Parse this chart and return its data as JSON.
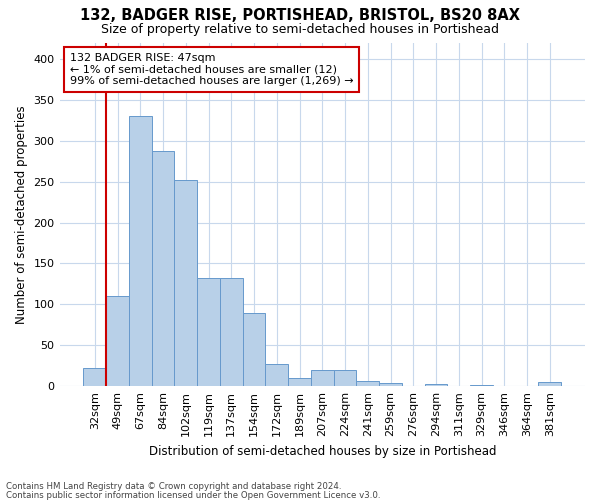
{
  "title1": "132, BADGER RISE, PORTISHEAD, BRISTOL, BS20 8AX",
  "title2": "Size of property relative to semi-detached houses in Portishead",
  "xlabel": "Distribution of semi-detached houses by size in Portishead",
  "ylabel": "Number of semi-detached properties",
  "categories": [
    "32sqm",
    "49sqm",
    "67sqm",
    "84sqm",
    "102sqm",
    "119sqm",
    "137sqm",
    "154sqm",
    "172sqm",
    "189sqm",
    "207sqm",
    "224sqm",
    "241sqm",
    "259sqm",
    "276sqm",
    "294sqm",
    "311sqm",
    "329sqm",
    "346sqm",
    "364sqm",
    "381sqm"
  ],
  "values": [
    22,
    110,
    330,
    287,
    252,
    132,
    132,
    90,
    27,
    10,
    20,
    20,
    6,
    4,
    0,
    3,
    0,
    1,
    0,
    0,
    5
  ],
  "bar_color": "#b8d0e8",
  "bar_edge_color": "#6699cc",
  "highlight_color": "#cc0000",
  "annotation_text": "132 BADGER RISE: 47sqm\n← 1% of semi-detached houses are smaller (12)\n99% of semi-detached houses are larger (1,269) →",
  "annotation_box_color": "#ffffff",
  "annotation_box_edgecolor": "#cc0000",
  "ylim": [
    0,
    420
  ],
  "yticks": [
    0,
    50,
    100,
    150,
    200,
    250,
    300,
    350,
    400
  ],
  "footer1": "Contains HM Land Registry data © Crown copyright and database right 2024.",
  "footer2": "Contains public sector information licensed under the Open Government Licence v3.0.",
  "bg_color": "#ffffff",
  "grid_color": "#c8d8ec"
}
